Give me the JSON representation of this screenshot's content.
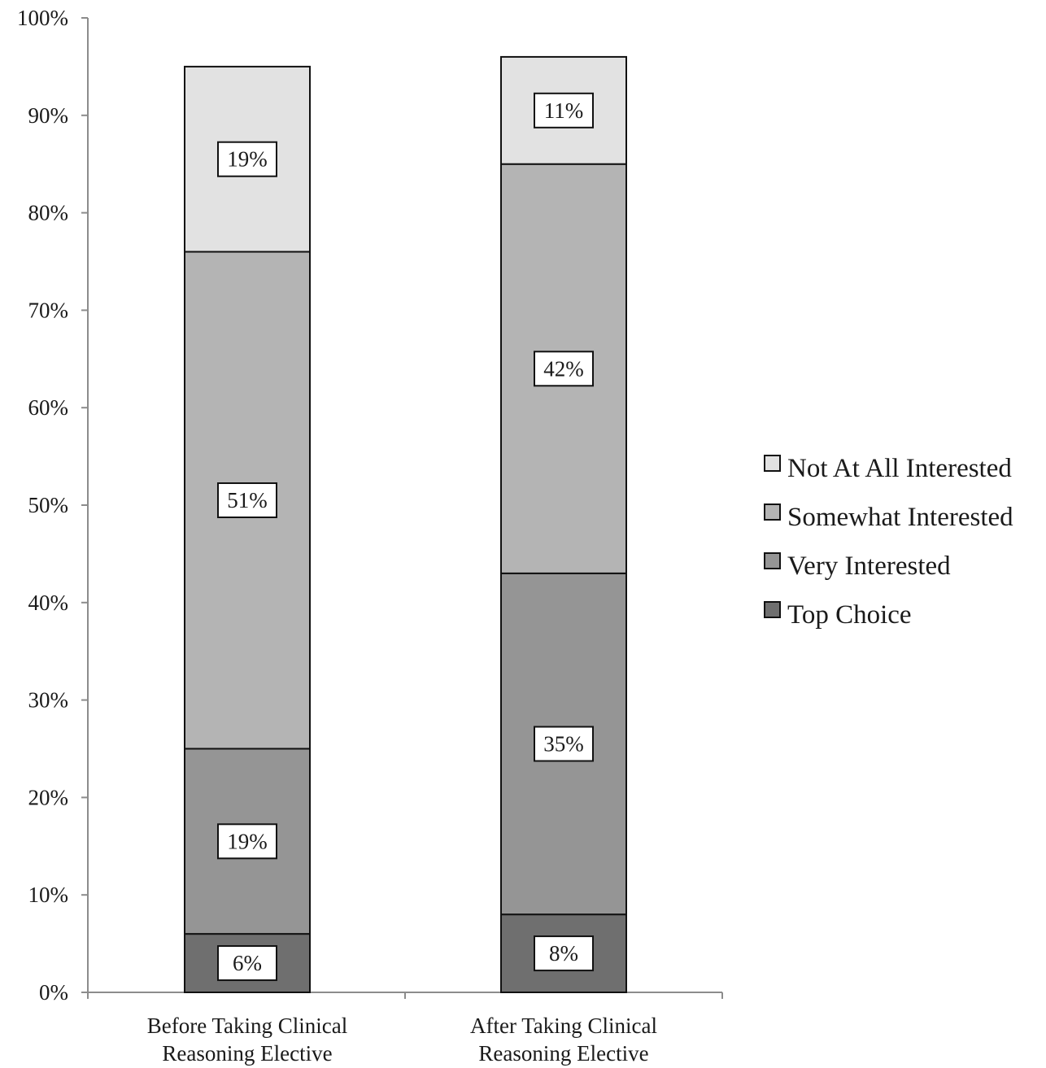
{
  "chart_data": {
    "type": "bar",
    "stacked": true,
    "categories": [
      [
        "Before Taking Clinical",
        "Reasoning Elective"
      ],
      [
        "After Taking Clinical",
        "Reasoning Elective"
      ]
    ],
    "series": [
      {
        "name": "Top Choice",
        "values": [
          6,
          8
        ],
        "labels": [
          "6%",
          "8%"
        ],
        "color": "#6f6f6f"
      },
      {
        "name": "Very Interested",
        "values": [
          19,
          35
        ],
        "labels": [
          "19%",
          "35%"
        ],
        "color": "#959595"
      },
      {
        "name": "Somewhat Interested",
        "values": [
          51,
          42
        ],
        "labels": [
          "51%",
          "42%"
        ],
        "color": "#b4b4b4"
      },
      {
        "name": "Not At All Interested",
        "values": [
          19,
          11
        ],
        "labels": [
          "19%",
          "11%"
        ],
        "color": "#e2e2e2"
      }
    ],
    "ylim": [
      0,
      100
    ],
    "yticks": [
      "0%",
      "10%",
      "20%",
      "30%",
      "40%",
      "50%",
      "60%",
      "70%",
      "80%",
      "90%",
      "100%"
    ],
    "legend": {
      "position": "right",
      "order": [
        "Not At All Interested",
        "Somewhat Interested",
        "Very Interested",
        "Top Choice"
      ]
    },
    "grid": false
  }
}
